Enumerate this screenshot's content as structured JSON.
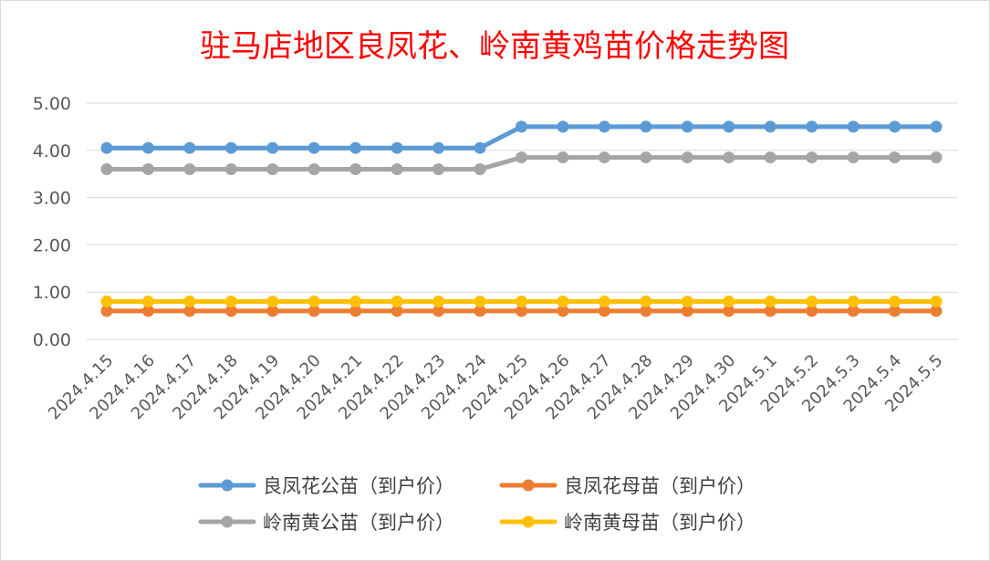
{
  "chart_data": {
    "type": "line",
    "title": "驻马店地区良凤花、岭南黄鸡苗价格走势图",
    "xlabel": "",
    "ylabel": "",
    "ylim": [
      0,
      5
    ],
    "yticks": [
      "0.00",
      "1.00",
      "2.00",
      "3.00",
      "4.00",
      "5.00"
    ],
    "grid": true,
    "legend_position": "bottom",
    "categories": [
      "2024.4.15",
      "2024.4.16",
      "2024.4.17",
      "2024.4.18",
      "2024.4.19",
      "2024.4.20",
      "2024.4.21",
      "2024.4.22",
      "2024.4.23",
      "2024.4.24",
      "2024.4.25",
      "2024.4.26",
      "2024.4.27",
      "2024.4.28",
      "2024.4.29",
      "2024.4.30",
      "2024.5.1",
      "2024.5.2",
      "2024.5.3",
      "2024.5.4",
      "2024.5.5"
    ],
    "series": [
      {
        "name": "良凤花公苗（到户价）",
        "color": "#5b9bd5",
        "values": [
          4.05,
          4.05,
          4.05,
          4.05,
          4.05,
          4.05,
          4.05,
          4.05,
          4.05,
          4.05,
          4.5,
          4.5,
          4.5,
          4.5,
          4.5,
          4.5,
          4.5,
          4.5,
          4.5,
          4.5,
          4.5
        ]
      },
      {
        "name": "良凤花母苗（到户价）",
        "color": "#ed7d31",
        "values": [
          0.6,
          0.6,
          0.6,
          0.6,
          0.6,
          0.6,
          0.6,
          0.6,
          0.6,
          0.6,
          0.6,
          0.6,
          0.6,
          0.6,
          0.6,
          0.6,
          0.6,
          0.6,
          0.6,
          0.6,
          0.6
        ]
      },
      {
        "name": "岭南黄公苗（到户价）",
        "color": "#a5a5a5",
        "values": [
          3.6,
          3.6,
          3.6,
          3.6,
          3.6,
          3.6,
          3.6,
          3.6,
          3.6,
          3.6,
          3.85,
          3.85,
          3.85,
          3.85,
          3.85,
          3.85,
          3.85,
          3.85,
          3.85,
          3.85,
          3.85
        ]
      },
      {
        "name": "岭南黄母苗（到户价）",
        "color": "#ffc000",
        "values": [
          0.8,
          0.8,
          0.8,
          0.8,
          0.8,
          0.8,
          0.8,
          0.8,
          0.8,
          0.8,
          0.8,
          0.8,
          0.8,
          0.8,
          0.8,
          0.8,
          0.8,
          0.8,
          0.8,
          0.8,
          0.8
        ]
      }
    ]
  }
}
